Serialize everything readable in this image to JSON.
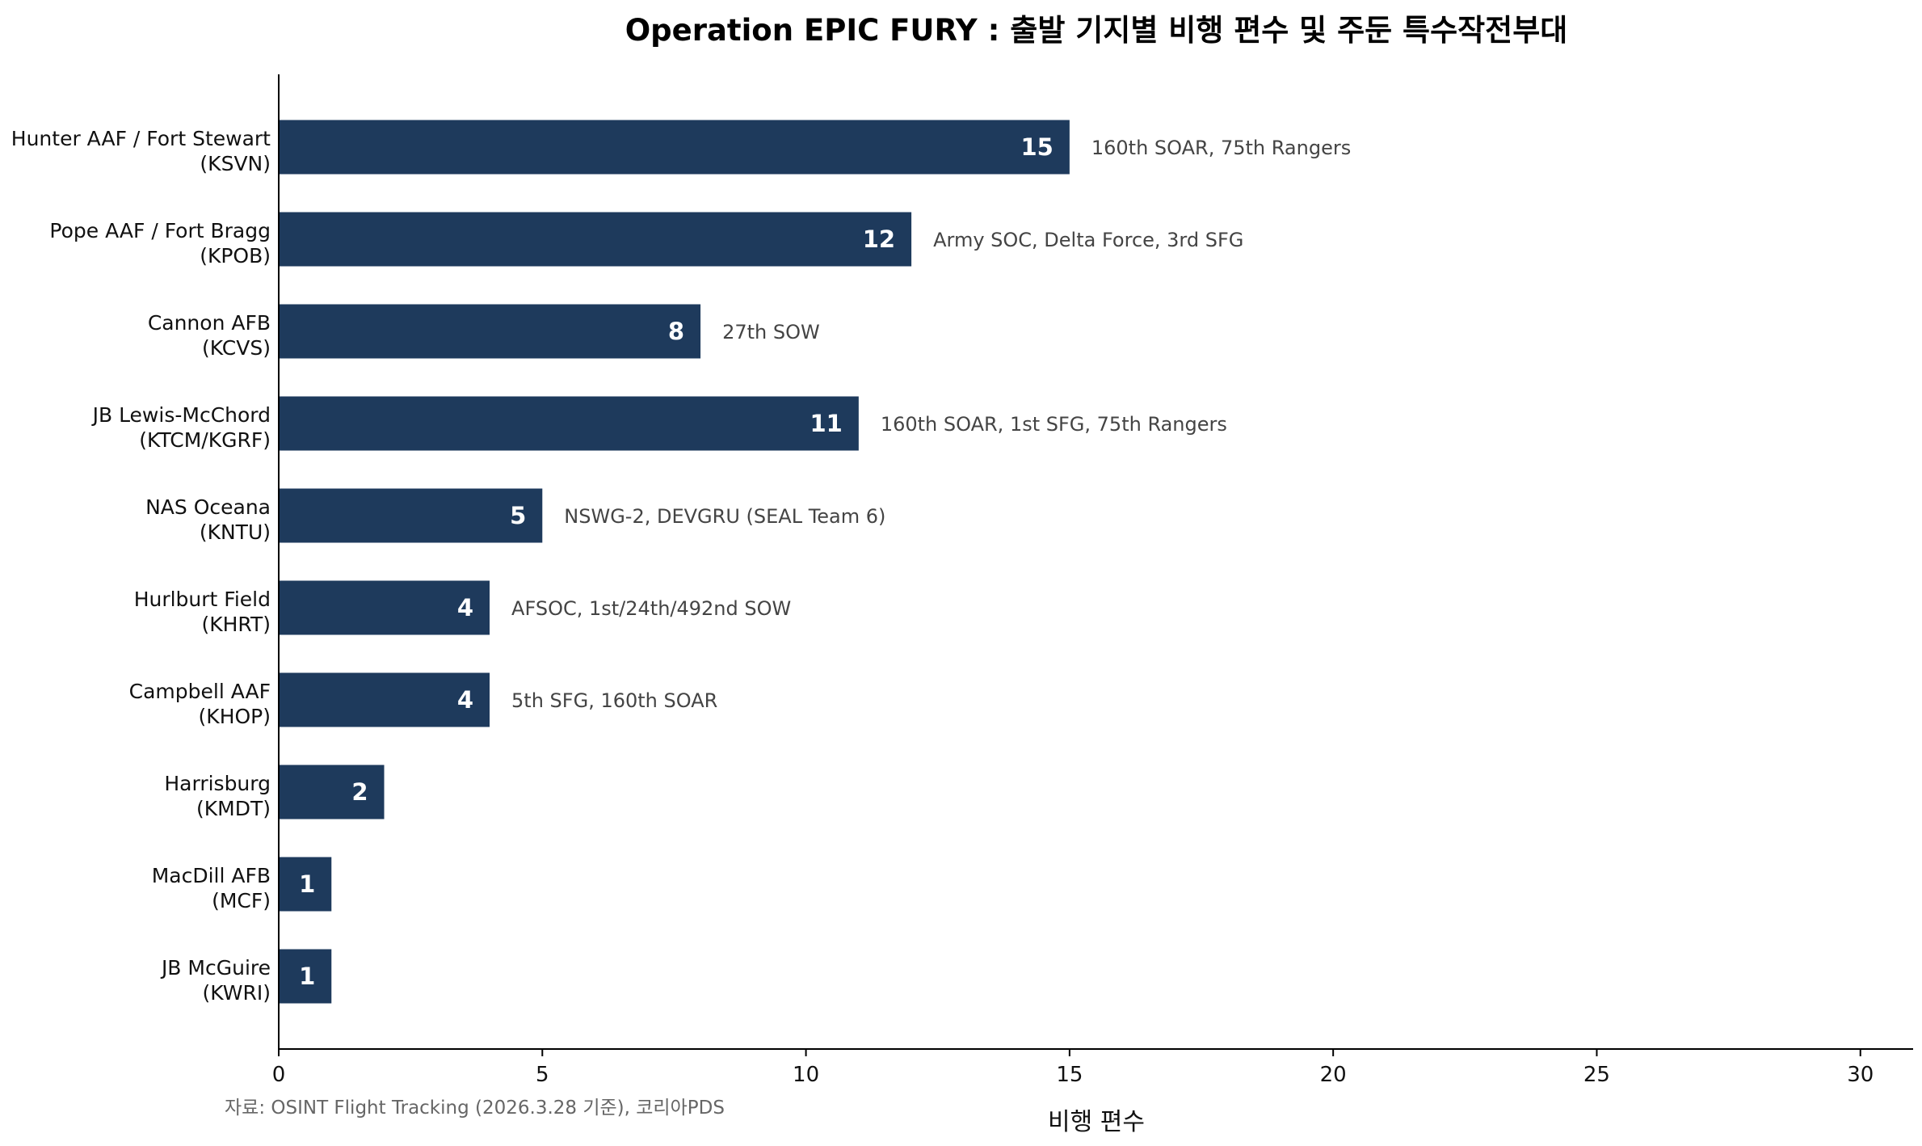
{
  "chart_data": {
    "type": "bar",
    "orientation": "horizontal",
    "title": "Operation EPIC FURY : 출발 기지별 비행 편수 및 주둔 특수작전부대",
    "xlabel": "비행 편수",
    "ylabel": "",
    "xlim": [
      0,
      31
    ],
    "xticks": [
      0,
      5,
      10,
      15,
      20,
      25,
      30
    ],
    "grid": false,
    "bar_color": "#1e3a5c",
    "categories": [
      {
        "line1": "Hunter AAF / Fort Stewart",
        "line2": "(KSVN)"
      },
      {
        "line1": "Pope AAF / Fort Bragg",
        "line2": "(KPOB)"
      },
      {
        "line1": "Cannon AFB",
        "line2": "(KCVS)"
      },
      {
        "line1": "JB Lewis-McChord",
        "line2": "(KTCM/KGRF)"
      },
      {
        "line1": "NAS Oceana",
        "line2": "(KNTU)"
      },
      {
        "line1": "Hurlburt Field",
        "line2": "(KHRT)"
      },
      {
        "line1": "Campbell AAF",
        "line2": "(KHOP)"
      },
      {
        "line1": "Harrisburg",
        "line2": "(KMDT)"
      },
      {
        "line1": "MacDill AFB",
        "line2": "(MCF)"
      },
      {
        "line1": "JB McGuire",
        "line2": "(KWRI)"
      }
    ],
    "values": [
      15,
      12,
      8,
      11,
      5,
      4,
      4,
      2,
      1,
      1
    ],
    "annotations": [
      "160th SOAR, 75th Rangers",
      "Army SOC, Delta Force, 3rd SFG",
      "27th SOW",
      "160th SOAR, 1st SFG, 75th Rangers",
      "NSWG-2, DEVGRU (SEAL Team 6)",
      "AFSOC, 1st/24th/492nd SOW",
      "5th SFG, 160th SOAR",
      "",
      "",
      ""
    ],
    "source": "자료: OSINT Flight Tracking (2026.3.28 기준), 코리아PDS"
  }
}
